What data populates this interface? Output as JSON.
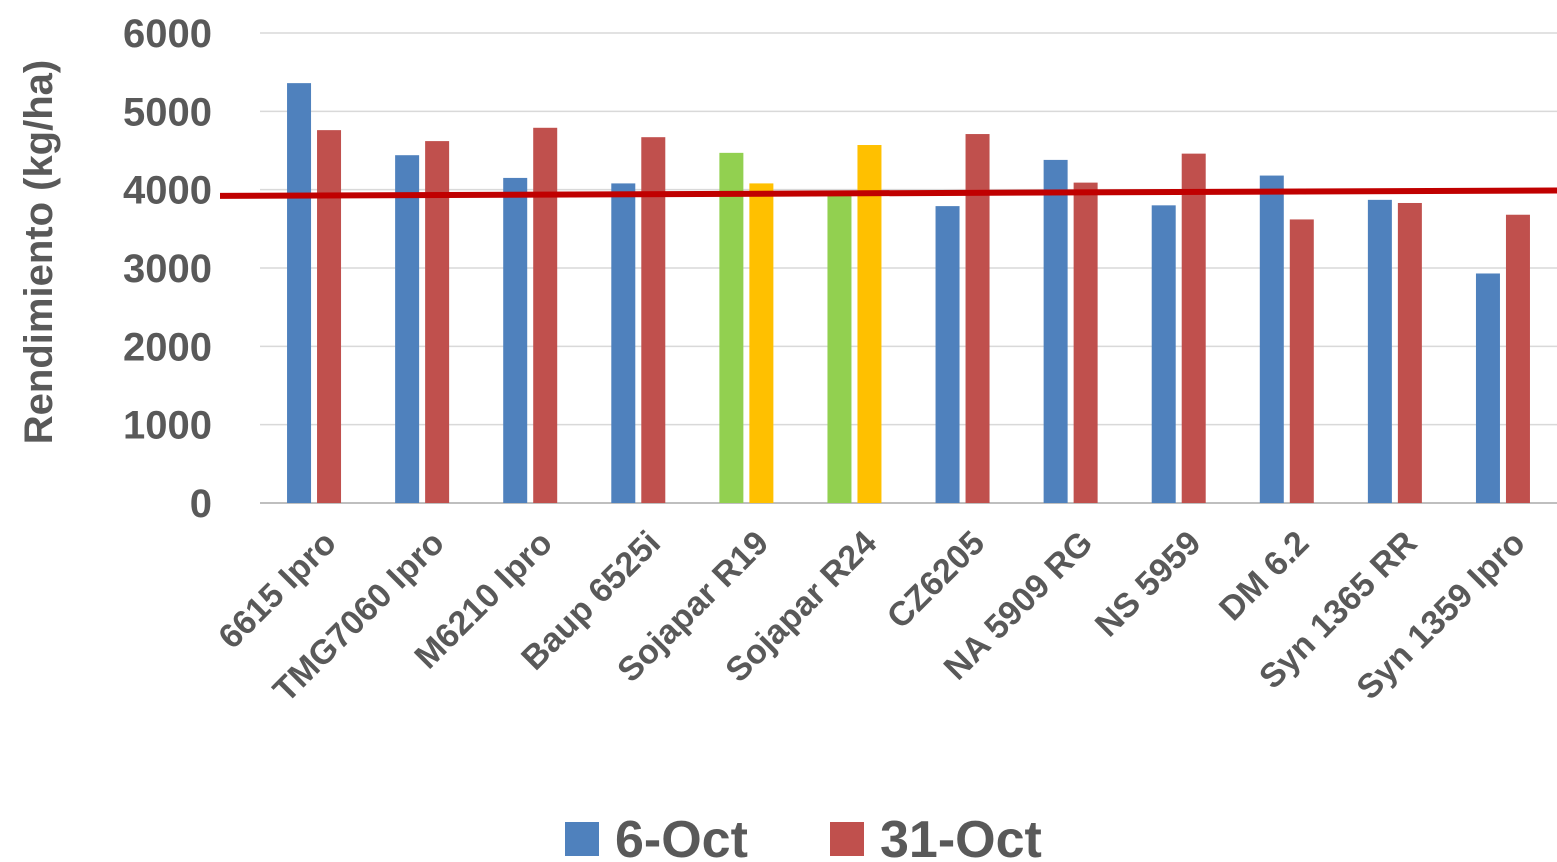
{
  "chart_data": {
    "type": "bar",
    "ylabel": "Rendimiento (kg/ha)",
    "ylim": [
      0,
      6000
    ],
    "yticks": [
      0,
      1000,
      2000,
      3000,
      4000,
      5000,
      6000
    ],
    "grid": true,
    "legend_position": "bottom",
    "categories": [
      "6615 Ipro",
      "TMG7060 Ipro",
      "M6210 Ipro",
      "Baup 6525i",
      "Sojapar R19",
      "Sojapar R24",
      "CZ6205",
      "NA 5909 RG",
      "NS 5959",
      "DM 6.2",
      "Syn 1365 RR",
      "Syn 1359 Ipro"
    ],
    "series": [
      {
        "name": "6-Oct",
        "color": "#4F81BD",
        "values": [
          5360,
          4440,
          4150,
          4080,
          4470,
          3960,
          3790,
          4380,
          3800,
          4180,
          3870,
          2930
        ]
      },
      {
        "name": "31-Oct",
        "color": "#C0504D",
        "values": [
          4760,
          4620,
          4790,
          4670,
          4080,
          4570,
          4710,
          4090,
          4460,
          3620,
          3830,
          3680
        ]
      }
    ],
    "highlight_colors": {
      "Sojapar R19": [
        "#92D050",
        "#FFC000"
      ],
      "Sojapar R24": [
        "#92D050",
        "#FFC000"
      ]
    },
    "trend_line": {
      "color": "#C00000",
      "start_value": 3920,
      "end_value": 3990
    }
  }
}
